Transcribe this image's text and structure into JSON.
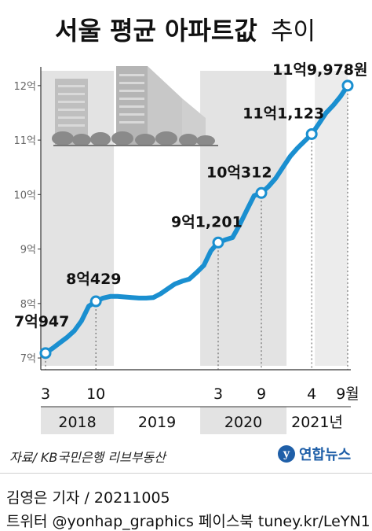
{
  "chart_data": {
    "type": "line",
    "title_main": "서울 평균 아파트값",
    "title_sub": "추이",
    "ylabel_unit": "억",
    "y_ticks": [
      7,
      8,
      9,
      10,
      11,
      12
    ],
    "y_tick_labels": [
      "7억",
      "8억",
      "9억",
      "10억",
      "11억",
      "12억"
    ],
    "ylim": [
      6.9,
      12.2
    ],
    "x_month_labels": [
      {
        "label": "3",
        "period": "2018-03"
      },
      {
        "label": "10",
        "period": "2018-10"
      },
      {
        "label": "3",
        "period": "2020-03"
      },
      {
        "label": "9",
        "period": "2020-09"
      },
      {
        "label": "4",
        "period": "2021-04"
      },
      {
        "label": "9월",
        "period": "2021-09"
      }
    ],
    "year_labels": [
      {
        "label": "2018",
        "start": "2018-01",
        "end": "2018-12",
        "shaded": true
      },
      {
        "label": "2019",
        "start": "2019-01",
        "end": "2019-12",
        "shaded": false
      },
      {
        "label": "2020",
        "start": "2020-01",
        "end": "2020-12",
        "shaded": true
      },
      {
        "label": "2021년",
        "start": "2021-01",
        "end": "2021-09",
        "shaded": false
      }
    ],
    "series": [
      {
        "color": "#1a8fd0",
        "points": [
          {
            "x": "2018-03",
            "y": 7.09
          },
          {
            "x": "2018-04",
            "y": 7.18
          },
          {
            "x": "2018-05",
            "y": 7.28
          },
          {
            "x": "2018-06",
            "y": 7.38
          },
          {
            "x": "2018-07",
            "y": 7.5
          },
          {
            "x": "2018-08",
            "y": 7.68
          },
          {
            "x": "2018-09",
            "y": 7.95
          },
          {
            "x": "2018-10",
            "y": 8.04
          },
          {
            "x": "2018-11",
            "y": 8.1
          },
          {
            "x": "2018-12",
            "y": 8.13
          },
          {
            "x": "2019-01",
            "y": 8.13
          },
          {
            "x": "2019-02",
            "y": 8.12
          },
          {
            "x": "2019-03",
            "y": 8.11
          },
          {
            "x": "2019-04",
            "y": 8.1
          },
          {
            "x": "2019-05",
            "y": 8.1
          },
          {
            "x": "2019-06",
            "y": 8.11
          },
          {
            "x": "2019-07",
            "y": 8.18
          },
          {
            "x": "2019-08",
            "y": 8.27
          },
          {
            "x": "2019-09",
            "y": 8.36
          },
          {
            "x": "2019-10",
            "y": 8.41
          },
          {
            "x": "2019-11",
            "y": 8.45
          },
          {
            "x": "2019-12",
            "y": 8.57
          },
          {
            "x": "2020-01",
            "y": 8.7
          },
          {
            "x": "2020-02",
            "y": 8.97
          },
          {
            "x": "2020-03",
            "y": 9.12
          },
          {
            "x": "2020-04",
            "y": 9.17
          },
          {
            "x": "2020-05",
            "y": 9.21
          },
          {
            "x": "2020-06",
            "y": 9.45
          },
          {
            "x": "2020-07",
            "y": 9.72
          },
          {
            "x": "2020-08",
            "y": 9.98
          },
          {
            "x": "2020-09",
            "y": 10.03
          },
          {
            "x": "2020-10",
            "y": 10.15
          },
          {
            "x": "2020-11",
            "y": 10.3
          },
          {
            "x": "2020-12",
            "y": 10.5
          },
          {
            "x": "2021-01",
            "y": 10.7
          },
          {
            "x": "2021-02",
            "y": 10.85
          },
          {
            "x": "2021-03",
            "y": 10.98
          },
          {
            "x": "2021-04",
            "y": 11.11
          },
          {
            "x": "2021-05",
            "y": 11.3
          },
          {
            "x": "2021-06",
            "y": 11.5
          },
          {
            "x": "2021-07",
            "y": 11.64
          },
          {
            "x": "2021-08",
            "y": 11.8
          },
          {
            "x": "2021-09",
            "y": 12.0
          }
        ]
      }
    ],
    "highlights": [
      {
        "x": "2018-03",
        "y": 7.09,
        "label_big": "7억",
        "label_small": "947"
      },
      {
        "x": "2018-10",
        "y": 8.04,
        "label_big": "8억",
        "label_small": "429"
      },
      {
        "x": "2020-03",
        "y": 9.12,
        "label_big": "9억",
        "label_small": "1,201"
      },
      {
        "x": "2020-09",
        "y": 10.03,
        "label_big": "10억",
        "label_small": "312"
      },
      {
        "x": "2021-04",
        "y": 11.11,
        "label_big": "11억",
        "label_small": "1,123"
      },
      {
        "x": "2021-09",
        "y": 12.0,
        "label_big": "11억",
        "label_small": "9,978원"
      }
    ],
    "grid": false,
    "legend": "none"
  },
  "source": "자료/ KB국민은행 리브부동산",
  "logo_text": "연합뉴스",
  "byline": "김영은 기자 / 20211005",
  "social": "트위터 @yonhap_graphics  페이스북 tuney.kr/LeYN1",
  "colors": {
    "line": "#1a8fd0",
    "shade": "#e3e3e3",
    "guide": "#555555",
    "logo": "#1f5fa8"
  }
}
